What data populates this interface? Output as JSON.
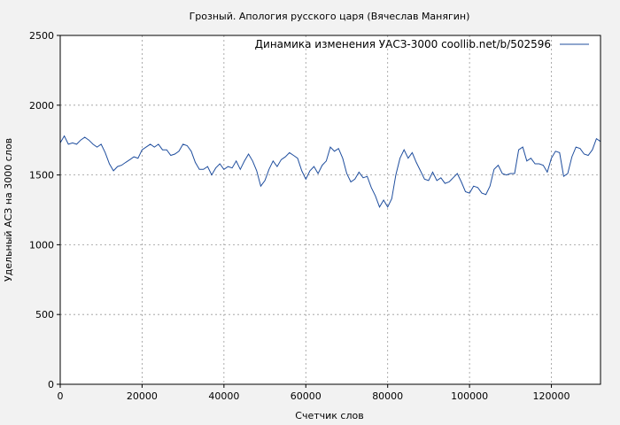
{
  "chart_data": {
    "type": "line",
    "title": "Грозный. Апология русского царя (Вячеслав Манягин)",
    "xlabel": "Счетчик слов",
    "ylabel": "Удельный АСЗ на 3000 слов",
    "xlim": [
      0,
      132000
    ],
    "ylim": [
      0,
      2500
    ],
    "xticks": [
      0,
      20000,
      40000,
      60000,
      80000,
      100000,
      120000
    ],
    "xtick_labels": [
      "0",
      "20000",
      "40000",
      "60000",
      "80000",
      "100000",
      "120000"
    ],
    "yticks": [
      0,
      500,
      1000,
      1500,
      2000,
      2500
    ],
    "ytick_labels": [
      "0",
      "500",
      "1000",
      "1500",
      "2000",
      "2500"
    ],
    "grid": true,
    "legend_position": "top-right",
    "series_color": "#1f4e9e",
    "series": [
      {
        "name": "Динамика изменения УАСЗ-3000  coollib.net/b/502596",
        "x": [
          0,
          1000,
          2000,
          3000,
          4000,
          5000,
          6000,
          7000,
          8000,
          9000,
          10000,
          11000,
          12000,
          13000,
          14000,
          15000,
          16000,
          17000,
          18000,
          19000,
          20000,
          21000,
          22000,
          23000,
          24000,
          25000,
          26000,
          27000,
          28000,
          29000,
          30000,
          31000,
          32000,
          33000,
          34000,
          35000,
          36000,
          37000,
          38000,
          39000,
          40000,
          41000,
          42000,
          43000,
          44000,
          45000,
          46000,
          47000,
          48000,
          49000,
          50000,
          51000,
          52000,
          53000,
          54000,
          55000,
          56000,
          57000,
          58000,
          59000,
          60000,
          61000,
          62000,
          63000,
          64000,
          65000,
          66000,
          67000,
          68000,
          69000,
          70000,
          71000,
          72000,
          73000,
          74000,
          75000,
          76000,
          77000,
          78000,
          79000,
          80000,
          81000,
          82000,
          83000,
          84000,
          85000,
          86000,
          87000,
          88000,
          89000,
          90000,
          91000,
          92000,
          93000,
          94000,
          95000,
          96000,
          97000,
          98000,
          99000,
          100000,
          101000,
          102000,
          103000,
          104000,
          105000,
          106000,
          107000,
          108000,
          109000,
          110000,
          111000,
          112000,
          113000,
          114000,
          115000,
          116000,
          117000,
          118000,
          119000,
          120000,
          121000,
          122000,
          123000,
          124000,
          125000,
          126000,
          127000,
          128000,
          129000,
          130000,
          131000,
          132000
        ],
        "values": [
          1730,
          1780,
          1720,
          1730,
          1720,
          1750,
          1770,
          1750,
          1720,
          1700,
          1720,
          1660,
          1580,
          1530,
          1560,
          1570,
          1590,
          1610,
          1630,
          1620,
          1680,
          1700,
          1720,
          1700,
          1720,
          1680,
          1680,
          1640,
          1650,
          1670,
          1720,
          1710,
          1670,
          1590,
          1540,
          1540,
          1560,
          1500,
          1550,
          1580,
          1540,
          1560,
          1550,
          1600,
          1540,
          1600,
          1650,
          1600,
          1530,
          1420,
          1460,
          1540,
          1600,
          1560,
          1610,
          1630,
          1660,
          1640,
          1620,
          1530,
          1470,
          1530,
          1560,
          1510,
          1570,
          1600,
          1700,
          1670,
          1690,
          1620,
          1510,
          1450,
          1470,
          1520,
          1480,
          1490,
          1410,
          1350,
          1270,
          1320,
          1270,
          1330,
          1500,
          1620,
          1680,
          1620,
          1660,
          1590,
          1530,
          1470,
          1460,
          1520,
          1460,
          1480,
          1440,
          1450,
          1480,
          1510,
          1450,
          1380,
          1370,
          1420,
          1410,
          1370,
          1360,
          1420,
          1540,
          1570,
          1510,
          1500,
          1510,
          1510,
          1680,
          1700,
          1600,
          1620,
          1580,
          1580,
          1570,
          1520,
          1620,
          1670,
          1660,
          1490,
          1510,
          1630,
          1700,
          1690,
          1650,
          1640,
          1680,
          1760,
          1740
        ]
      }
    ]
  }
}
